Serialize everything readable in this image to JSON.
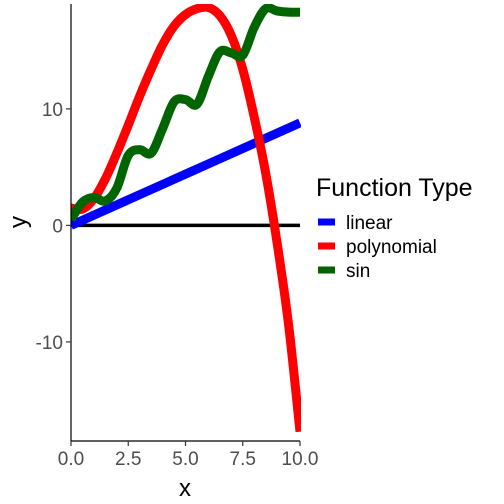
{
  "chart_data": {
    "type": "line",
    "xlabel": "x",
    "ylabel": "y",
    "xlim": [
      0,
      10
    ],
    "ylim": [
      -18.5,
      19
    ],
    "x_ticks": [
      0,
      2.5,
      5,
      7.5,
      10
    ],
    "x_tick_labels": [
      "0.0",
      "2.5",
      "5.0",
      "7.5",
      "10.0"
    ],
    "y_ticks": [
      -10,
      0,
      10
    ],
    "y_tick_labels": [
      "-10",
      "0",
      "10"
    ],
    "grid": false,
    "legend": {
      "title": "Function Type",
      "position": "right"
    },
    "reference_line": {
      "y": 0,
      "color": "#000000"
    },
    "series": [
      {
        "name": "linear",
        "color": "#0000FF",
        "x": [
          0,
          2.5,
          5,
          7.5,
          10
        ],
        "y": [
          0,
          2.2,
          4.4,
          6.6,
          8.8
        ]
      },
      {
        "name": "polynomial",
        "color": "#FF0000",
        "x": [
          0,
          0.5,
          1,
          1.5,
          2,
          2.5,
          3,
          3.5,
          4,
          4.5,
          5,
          5.5,
          6,
          6.5,
          7,
          7.5,
          8,
          8.5,
          9,
          9.5,
          10
        ],
        "y": [
          1.5,
          1.4,
          2.3,
          4.0,
          6.2,
          8.6,
          11.1,
          13.4,
          15.5,
          17.1,
          18.1,
          18.6,
          18.7,
          18.0,
          16.3,
          13.4,
          9.3,
          4.5,
          -1.5,
          -8.5,
          -17.7
        ]
      },
      {
        "name": "sin",
        "color": "#006400",
        "x": [
          0,
          0.5,
          1,
          1.5,
          2,
          2.5,
          3,
          3.5,
          4,
          4.5,
          5,
          5.5,
          6,
          6.5,
          7,
          7.5,
          8,
          8.5,
          9,
          9.5,
          10
        ],
        "y": [
          0.5,
          2.0,
          2.4,
          2.1,
          3.2,
          6.0,
          6.5,
          6.2,
          8.3,
          10.6,
          10.8,
          10.4,
          12.8,
          14.9,
          14.8,
          14.6,
          17.0,
          18.6,
          18.4,
          18.3,
          18.3
        ]
      }
    ]
  }
}
